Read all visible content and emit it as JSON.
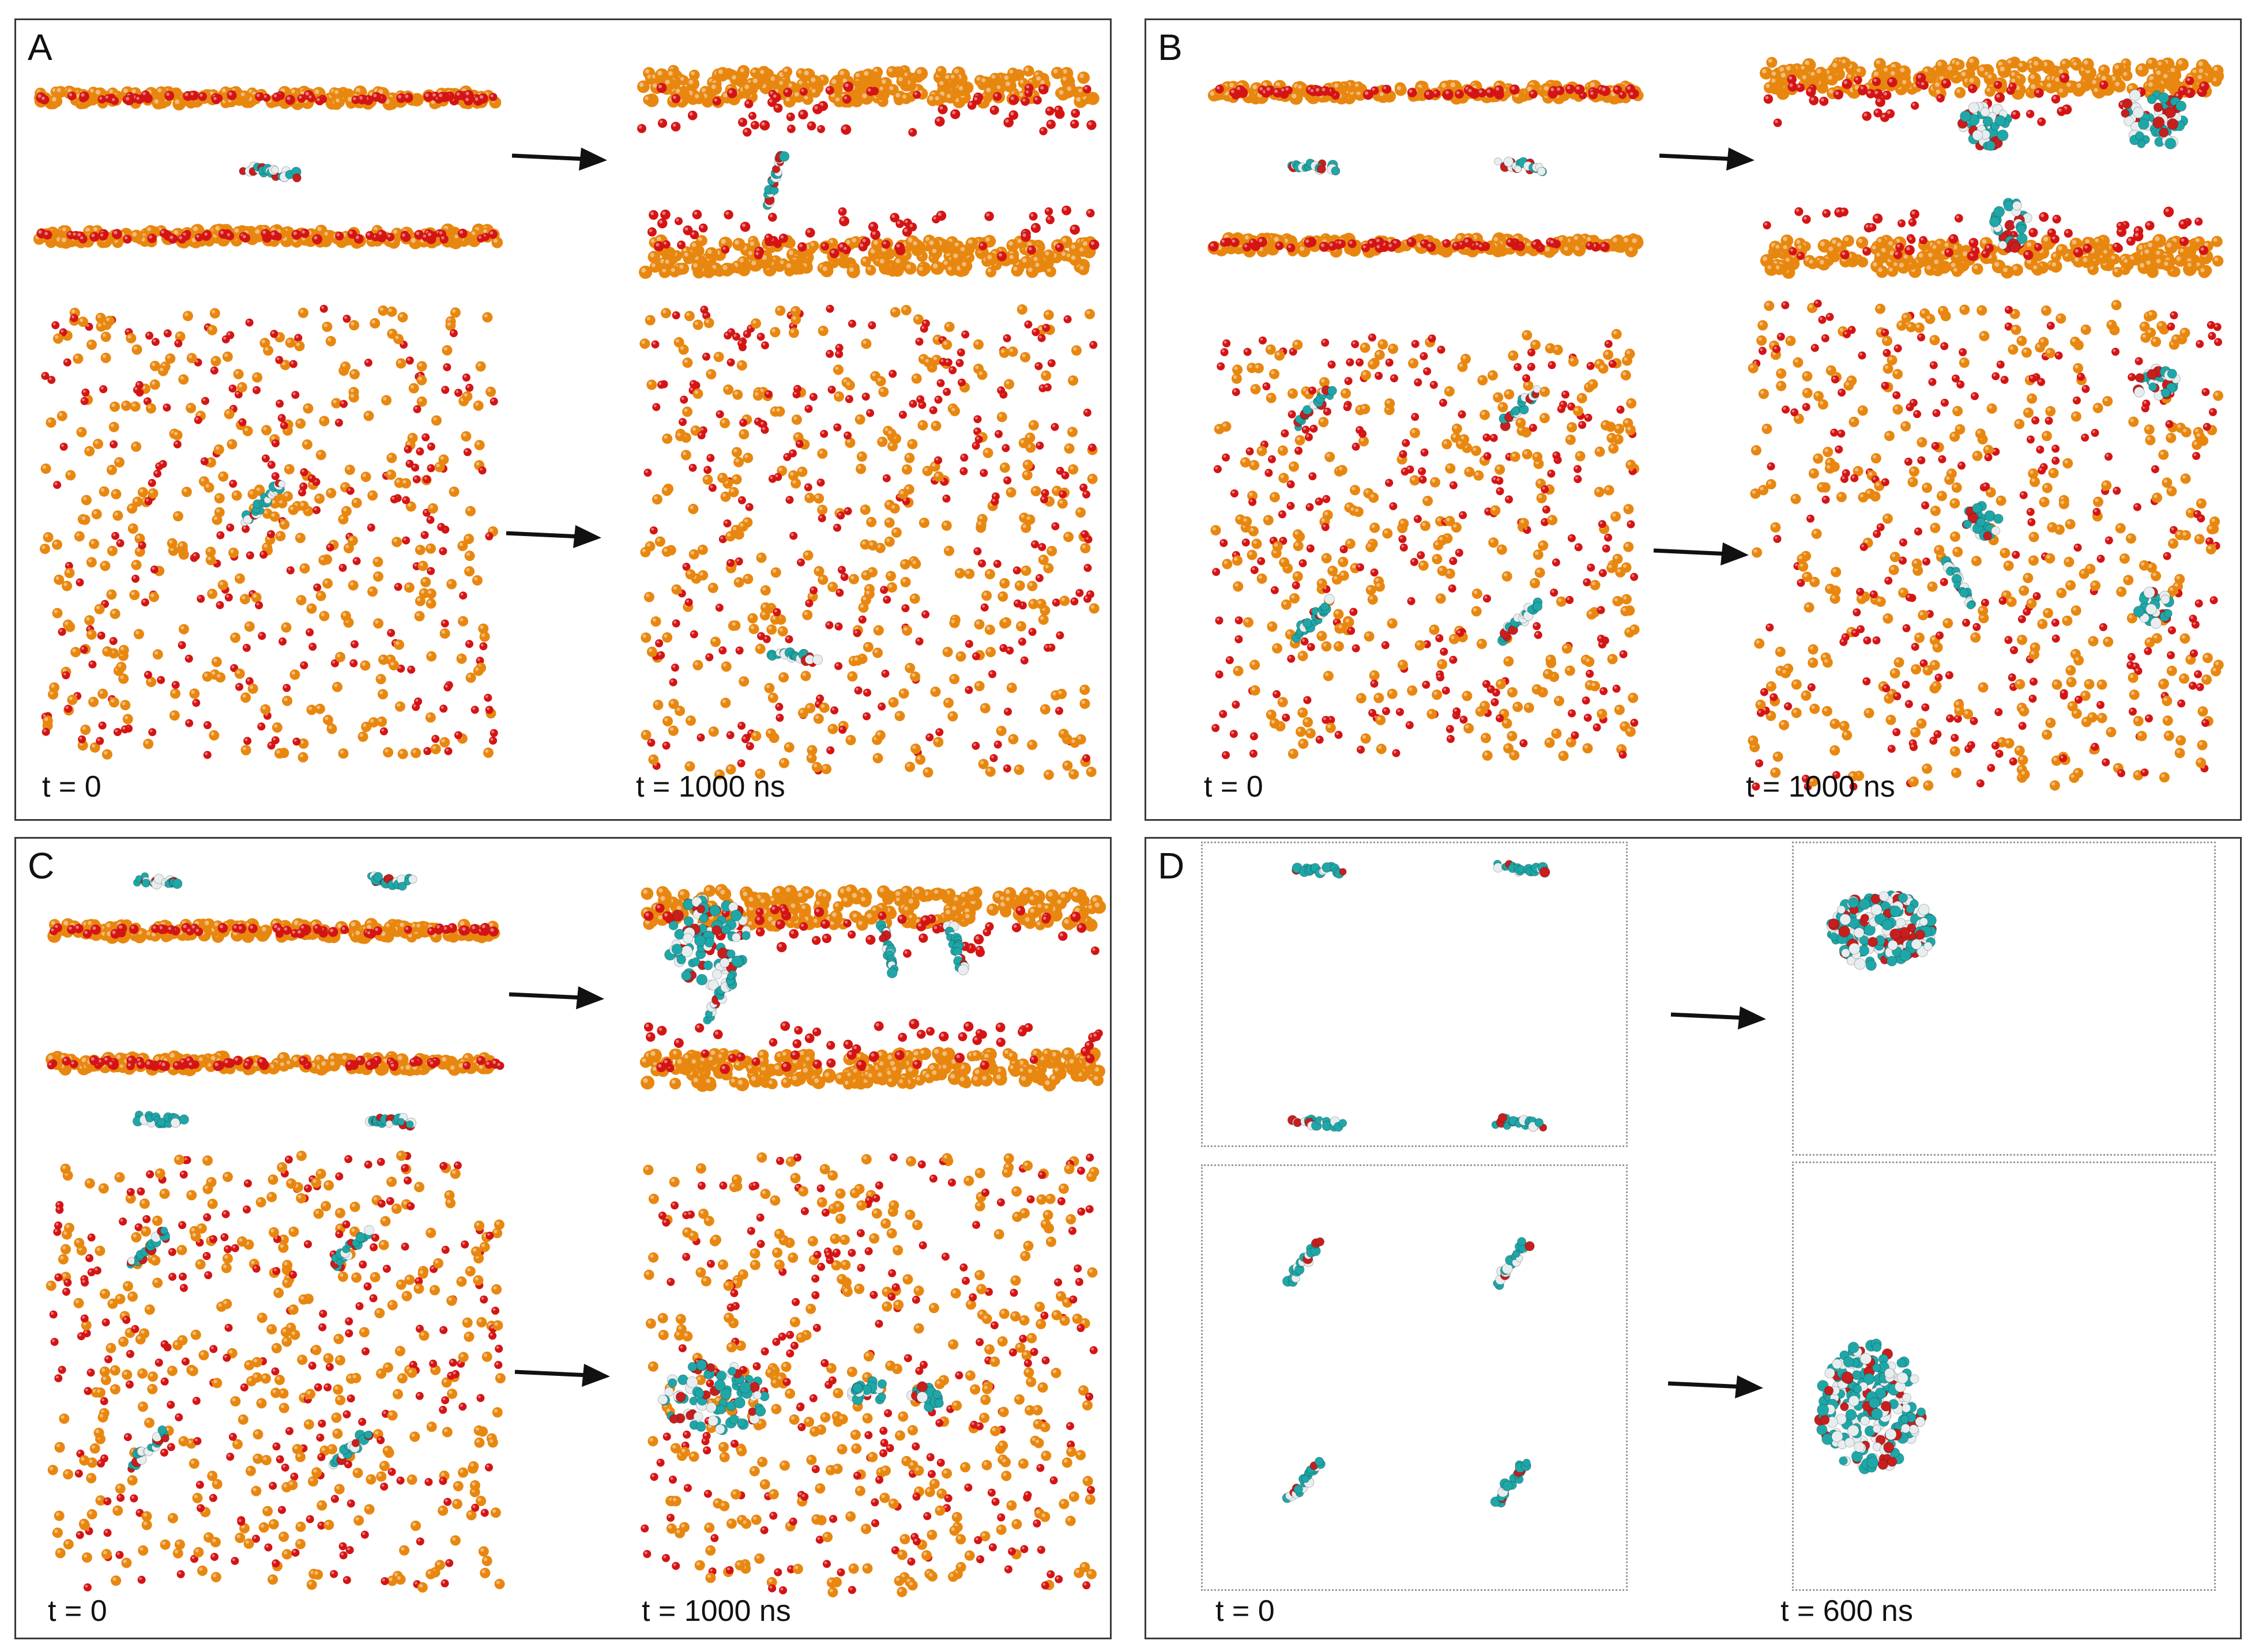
{
  "figure": {
    "colors": {
      "orange_bead": "#e8870f",
      "red_bead": "#d41414",
      "molecule_cyan": "#1fa7a8",
      "molecule_white": "#e8eef0",
      "molecule_red": "#c81e1e",
      "arrow": "#111111"
    },
    "panels": [
      {
        "id": "A",
        "label": "A",
        "t_start": "t = 0",
        "t_end": "t = 1000 ns"
      },
      {
        "id": "B",
        "label": "B",
        "t_start": "t = 0",
        "t_end": "t = 1000 ns"
      },
      {
        "id": "C",
        "label": "C",
        "t_start": "t = 0",
        "t_end": "t = 1000 ns"
      },
      {
        "id": "D",
        "label": "D",
        "t_start": "t = 0",
        "t_end": "t = 600 ns"
      }
    ]
  }
}
